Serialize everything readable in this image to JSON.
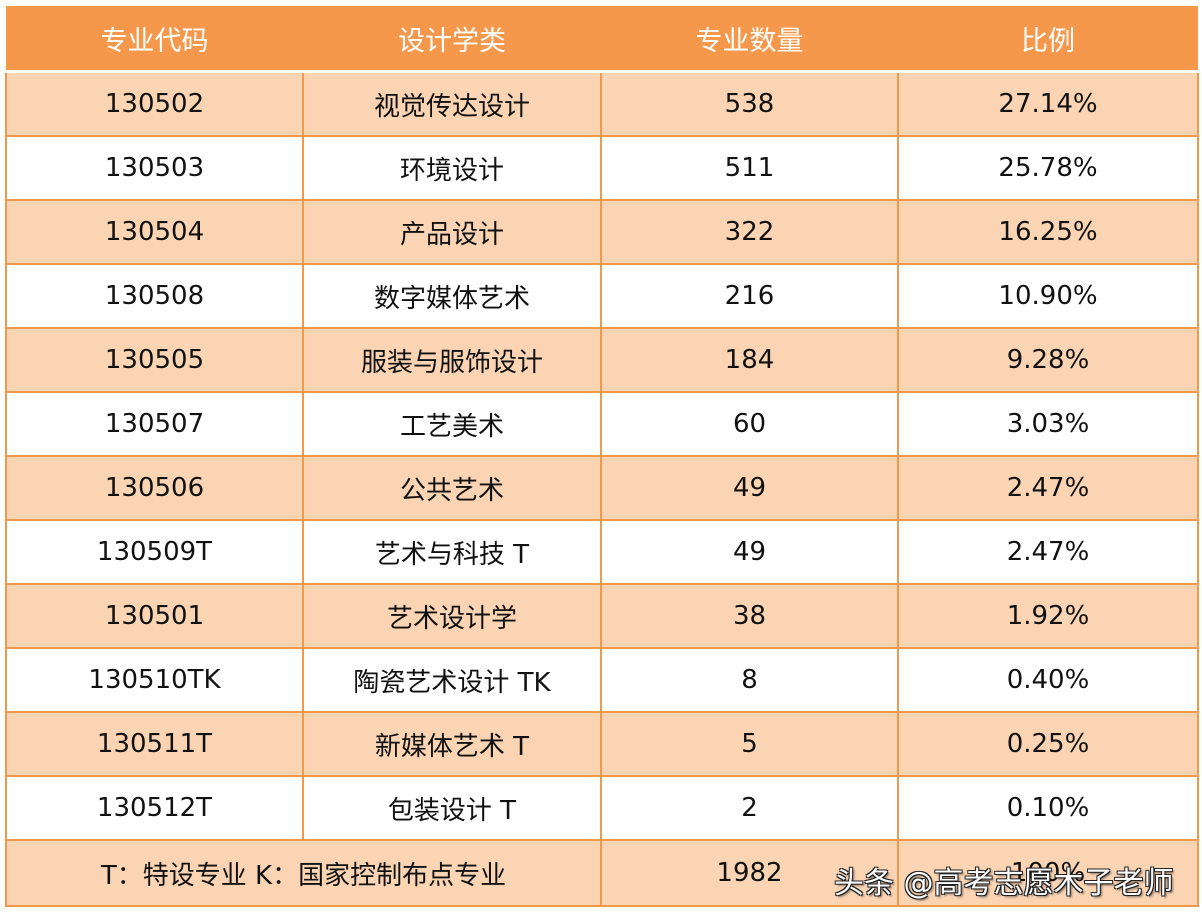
{
  "table": {
    "headers": [
      "专业代码",
      "设计学类",
      "专业数量",
      "比例"
    ],
    "rows": [
      {
        "code": "130502",
        "name": "视觉传达设计",
        "count": "538",
        "ratio": "27.14%"
      },
      {
        "code": "130503",
        "name": "环境设计",
        "count": "511",
        "ratio": "25.78%"
      },
      {
        "code": "130504",
        "name": "产品设计",
        "count": "322",
        "ratio": "16.25%"
      },
      {
        "code": "130508",
        "name": "数字媒体艺术",
        "count": "216",
        "ratio": "10.90%"
      },
      {
        "code": "130505",
        "name": "服装与服饰设计",
        "count": "184",
        "ratio": "9.28%"
      },
      {
        "code": "130507",
        "name": "工艺美术",
        "count": "60",
        "ratio": "3.03%"
      },
      {
        "code": "130506",
        "name": "公共艺术",
        "count": "49",
        "ratio": "2.47%"
      },
      {
        "code": "130509T",
        "name": "艺术与科技 T",
        "count": "49",
        "ratio": "2.47%"
      },
      {
        "code": "130501",
        "name": "艺术设计学",
        "count": "38",
        "ratio": "1.92%"
      },
      {
        "code": "130510TK",
        "name": "陶瓷艺术设计 TK",
        "count": "8",
        "ratio": "0.40%"
      },
      {
        "code": "130511T",
        "name": "新媒体艺术 T",
        "count": "5",
        "ratio": "0.25%"
      },
      {
        "code": "130512T",
        "name": "包装设计 T",
        "count": "2",
        "ratio": "0.10%"
      }
    ],
    "footer": {
      "note": "T：特设专业  K：国家控制布点专业",
      "total_count": "1982",
      "total_ratio": "100%"
    }
  },
  "watermark": "头条 @高考志愿木子老师",
  "colors": {
    "header_bg": "#F5984B",
    "header_text": "#FFFFFF",
    "row_peach": "#FBD4B4",
    "row_white": "#FFFFFF",
    "border": "#F0994C",
    "text": "#111111"
  }
}
